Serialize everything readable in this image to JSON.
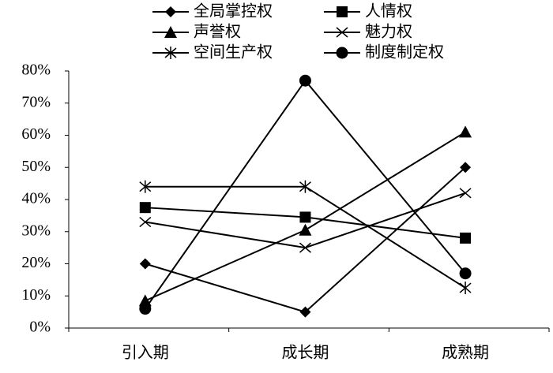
{
  "chart_data": {
    "type": "line",
    "categories": [
      "引入期",
      "成长期",
      "成熟期"
    ],
    "series": [
      {
        "name": "全局掌控权",
        "color": "#000000",
        "marker": "diamond",
        "values": [
          20,
          5,
          50
        ]
      },
      {
        "name": "人情权",
        "color": "#000000",
        "marker": "square",
        "values": [
          37.5,
          34.5,
          28
        ]
      },
      {
        "name": "声誉权",
        "color": "#000000",
        "marker": "triangle",
        "values": [
          8.5,
          30.5,
          61
        ]
      },
      {
        "name": "魅力权",
        "color": "#000000",
        "marker": "x",
        "values": [
          33,
          25,
          42
        ]
      },
      {
        "name": "空间生产权",
        "color": "#000000",
        "marker": "asterisk",
        "values": [
          44,
          44,
          12.5
        ]
      },
      {
        "name": "制度制定权",
        "color": "#000000",
        "marker": "circle",
        "values": [
          6,
          77,
          17
        ]
      }
    ],
    "ylim": [
      0,
      80
    ],
    "yticks": [
      {
        "value": 0,
        "label": "0%"
      },
      {
        "value": 10,
        "label": "10%"
      },
      {
        "value": 20,
        "label": "20%"
      },
      {
        "value": 30,
        "label": "30%"
      },
      {
        "value": 40,
        "label": "40%"
      },
      {
        "value": 50,
        "label": "50%"
      },
      {
        "value": 60,
        "label": "60%"
      },
      {
        "value": 70,
        "label": "70%"
      },
      {
        "value": 80,
        "label": "80%"
      }
    ],
    "legend": "top"
  }
}
